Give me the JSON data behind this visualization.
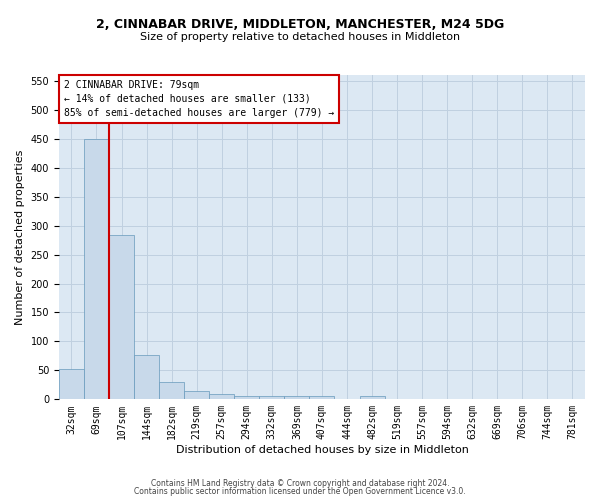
{
  "title": "2, CINNABAR DRIVE, MIDDLETON, MANCHESTER, M24 5DG",
  "subtitle": "Size of property relative to detached houses in Middleton",
  "xlabel": "Distribution of detached houses by size in Middleton",
  "ylabel": "Number of detached properties",
  "bar_labels": [
    "32sqm",
    "69sqm",
    "107sqm",
    "144sqm",
    "182sqm",
    "219sqm",
    "257sqm",
    "294sqm",
    "332sqm",
    "369sqm",
    "407sqm",
    "444sqm",
    "482sqm",
    "519sqm",
    "557sqm",
    "594sqm",
    "632sqm",
    "669sqm",
    "706sqm",
    "744sqm",
    "781sqm"
  ],
  "bar_values": [
    53,
    450,
    283,
    77,
    30,
    14,
    10,
    6,
    5,
    5,
    6,
    0,
    5,
    0,
    0,
    0,
    0,
    0,
    0,
    0,
    0
  ],
  "bar_color": "#c8d9ea",
  "bar_edge_color": "#6699bb",
  "grid_color": "#c0d0e0",
  "background_color": "#dce8f3",
  "red_line_x": 1.5,
  "annotation_title": "2 CINNABAR DRIVE: 79sqm",
  "annotation_line1": "← 14% of detached houses are smaller (133)",
  "annotation_line2": "85% of semi-detached houses are larger (779) →",
  "annotation_box_color": "#ffffff",
  "annotation_border_color": "#cc0000",
  "vline_color": "#cc0000",
  "footer1": "Contains HM Land Registry data © Crown copyright and database right 2024.",
  "footer2": "Contains public sector information licensed under the Open Government Licence v3.0.",
  "ylim": [
    0,
    560
  ],
  "yticks": [
    0,
    50,
    100,
    150,
    200,
    250,
    300,
    350,
    400,
    450,
    500,
    550
  ],
  "title_fontsize": 9,
  "subtitle_fontsize": 8,
  "ylabel_fontsize": 8,
  "xlabel_fontsize": 8,
  "tick_fontsize": 7,
  "annot_fontsize": 7
}
